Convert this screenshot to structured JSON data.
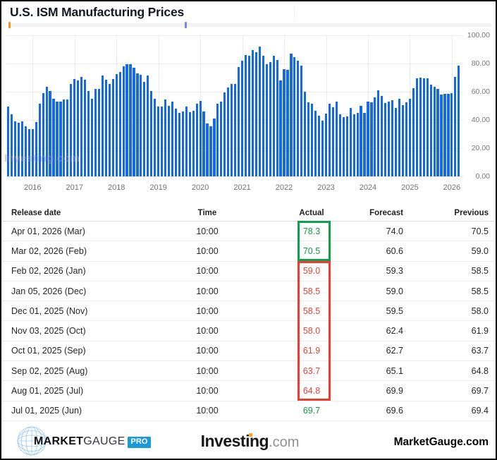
{
  "header": {
    "title": "U.S. ISM Manufacturing Prices"
  },
  "colors": {
    "bar_blue": "#1569e6",
    "green": "#0ca14a",
    "red": "#ee3b33",
    "nav_orange": "#f0941f",
    "nav_purple": "#8181e8",
    "pro_badge_blue": "#1a9ad7",
    "investing_orange": "#f7a21d"
  },
  "navigator": {
    "markers": [
      "orange",
      "purple"
    ]
  },
  "chart_data": {
    "type": "bar",
    "title": "U.S. ISM Manufacturing Prices",
    "xlabel": "",
    "ylabel": "",
    "ylim": [
      0,
      100
    ],
    "grid": true,
    "y_ticks": [
      "100.00",
      "80.00",
      "60.00",
      "40.00",
      "20.00",
      "0.00"
    ],
    "x_ticks": [
      "2016",
      "2017",
      "2018",
      "2019",
      "2020",
      "2021",
      "2022",
      "2023",
      "2024",
      "2025",
      "2026"
    ],
    "start_month": "2015-06",
    "frequency": "monthly",
    "watermark": "Investing.com",
    "values": [
      49.5,
      44.0,
      39.0,
      38.0,
      39.0,
      35.5,
      33.5,
      33.5,
      38.5,
      51.5,
      59.0,
      63.5,
      60.5,
      55.0,
      53.0,
      53.0,
      54.5,
      54.5,
      65.5,
      69.0,
      68.0,
      70.5,
      68.5,
      60.5,
      55.0,
      62.0,
      62.0,
      71.5,
      68.5,
      65.5,
      69.0,
      72.7,
      74.2,
      78.1,
      79.3,
      79.5,
      76.8,
      73.2,
      72.1,
      66.9,
      71.6,
      60.7,
      54.9,
      49.6,
      49.4,
      54.3,
      50.0,
      53.2,
      47.9,
      45.1,
      46.0,
      49.7,
      45.5,
      46.7,
      51.7,
      53.3,
      45.9,
      37.4,
      35.3,
      40.8,
      51.3,
      53.2,
      59.5,
      62.8,
      65.5,
      65.4,
      77.6,
      82.1,
      86.0,
      85.6,
      89.6,
      88.0,
      92.1,
      85.7,
      79.4,
      81.2,
      85.7,
      82.4,
      68.2,
      76.1,
      75.6,
      87.1,
      84.6,
      82.2,
      78.5,
      60.0,
      52.5,
      51.7,
      46.6,
      43.0,
      39.4,
      44.5,
      51.3,
      49.2,
      53.2,
      44.2,
      41.8,
      42.6,
      48.4,
      43.8,
      45.1,
      49.9,
      45.2,
      52.9,
      52.5,
      55.8,
      60.9,
      57.0,
      52.1,
      52.9,
      54.0,
      48.3,
      54.8,
      50.3,
      52.5,
      54.9,
      62.4,
      69.4,
      69.8,
      69.4,
      69.7,
      64.8,
      63.7,
      61.9,
      58.0,
      58.5,
      58.5,
      59.0,
      70.5,
      78.3
    ]
  },
  "table": {
    "headers": [
      "Release date",
      "Time",
      "Actual",
      "Forecast",
      "Previous"
    ],
    "rows": [
      {
        "date": "Apr 01, 2026 (Mar)",
        "time": "10:00",
        "actual": "78.3",
        "dir": "up",
        "forecast": "74.0",
        "previous": "70.5"
      },
      {
        "date": "Mar 02, 2026 (Feb)",
        "time": "10:00",
        "actual": "70.5",
        "dir": "up",
        "forecast": "60.6",
        "previous": "59.0"
      },
      {
        "date": "Feb 02, 2026 (Jan)",
        "time": "10:00",
        "actual": "59.0",
        "dir": "down",
        "forecast": "59.3",
        "previous": "58.5"
      },
      {
        "date": "Jan 05, 2026 (Dec)",
        "time": "10:00",
        "actual": "58.5",
        "dir": "down",
        "forecast": "59.0",
        "previous": "58.5"
      },
      {
        "date": "Dec 01, 2025 (Nov)",
        "time": "10:00",
        "actual": "58.5",
        "dir": "down",
        "forecast": "59.5",
        "previous": "58.0"
      },
      {
        "date": "Nov 03, 2025 (Oct)",
        "time": "10:00",
        "actual": "58.0",
        "dir": "down",
        "forecast": "62.4",
        "previous": "61.9"
      },
      {
        "date": "Oct 01, 2025 (Sep)",
        "time": "10:00",
        "actual": "61.9",
        "dir": "down",
        "forecast": "62.7",
        "previous": "63.7"
      },
      {
        "date": "Sep 02, 2025 (Aug)",
        "time": "10:00",
        "actual": "63.7",
        "dir": "down",
        "forecast": "65.1",
        "previous": "64.8"
      },
      {
        "date": "Aug 01, 2025 (Jul)",
        "time": "10:00",
        "actual": "64.8",
        "dir": "down",
        "forecast": "69.9",
        "previous": "69.7"
      },
      {
        "date": "Jul 01, 2025 (Jun)",
        "time": "10:00",
        "actual": "69.7",
        "dir": "up",
        "forecast": "69.6",
        "previous": "69.4"
      }
    ],
    "highlights": {
      "green_rows": [
        0,
        1
      ],
      "red_rows": [
        2,
        8
      ]
    }
  },
  "footer": {
    "marketgauge_logo": {
      "market": "MARKET",
      "gauge": "GAUGE",
      "pro": "PRO"
    },
    "investing_logo": {
      "word": "Investing",
      "tld": ".com"
    },
    "site_link": "MarketGauge.com"
  }
}
